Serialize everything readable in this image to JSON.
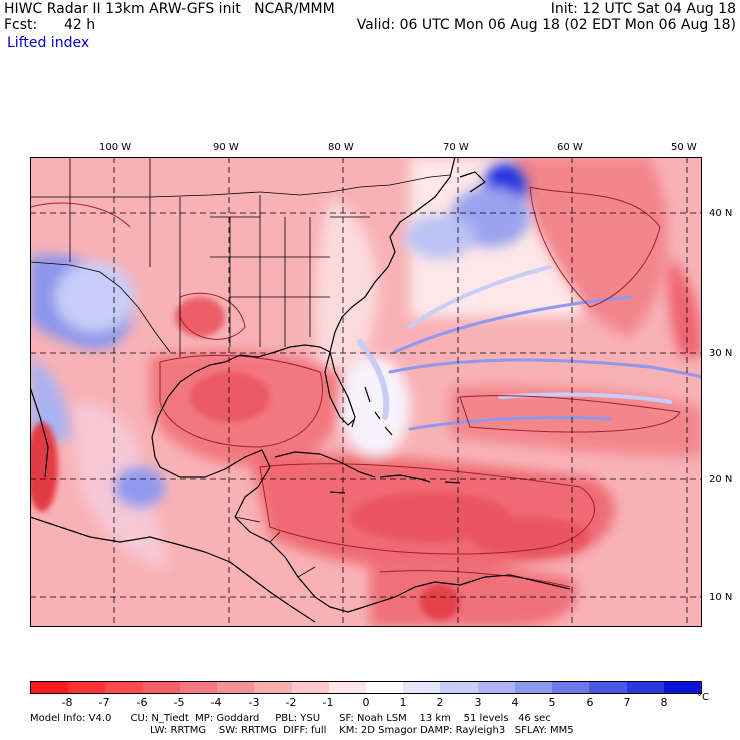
{
  "header": {
    "line1_left": "HIWC Radar II 13km ARW-GFS init   NCAR/MMM",
    "line1_right": "Init: 12 UTC Sat 04 Aug 18",
    "line2_fcst_label": "Fcst:",
    "line2_fcst_value": "42 h",
    "line2_right": "Valid: 06 UTC Mon 06 Aug 18 (02 EDT Mon 06 Aug 18)",
    "field_name": "Lifted index"
  },
  "map": {
    "lon_labels": [
      "100 W",
      "90 W",
      "80 W",
      "70 W",
      "60 W",
      "50 W"
    ],
    "lat_labels": [
      "40 N",
      "30 N",
      "20 N",
      "10 N"
    ],
    "colors": {
      "strong_red": "#e83848",
      "mid_red": "#f37f86",
      "light_red": "#fbc8ca",
      "neutral": "#ffffff",
      "light_blue": "#d8dcf8",
      "mid_blue": "#8d98ee",
      "strong_blue": "#2b33e0",
      "border": "#000000",
      "grid": "#000000"
    }
  },
  "colorbar": {
    "labels": [
      "-8",
      "-7",
      "-6",
      "-5",
      "-4",
      "-3",
      "-2",
      "-1",
      "0",
      "1",
      "2",
      "3",
      "4",
      "5",
      "6",
      "7",
      "8"
    ],
    "unit": "°C",
    "colors": [
      "#ff1a1a",
      "#ff3333",
      "#fd4a4f",
      "#f76068",
      "#f47981",
      "#f59298",
      "#f8adb1",
      "#fbc8cb",
      "#fde6e7",
      "#ffffff",
      "#e5e7fc",
      "#c9cef8",
      "#aeb5f4",
      "#8e98ee",
      "#6d79ea",
      "#4b58e4",
      "#2b37df",
      "#0a14d8"
    ]
  },
  "footer": {
    "line1": "Model Info: V4.0      CU: N_Tiedt  MP: Goddard     PBL: YSU      SF: Noah LSM    13 km    51 levels   46 sec",
    "line2": "LW: RRTMG    SW: RRTMG  DIFF: full    KM: 2D Smagor DAMP: Rayleigh3   SFLAY: MM5"
  }
}
